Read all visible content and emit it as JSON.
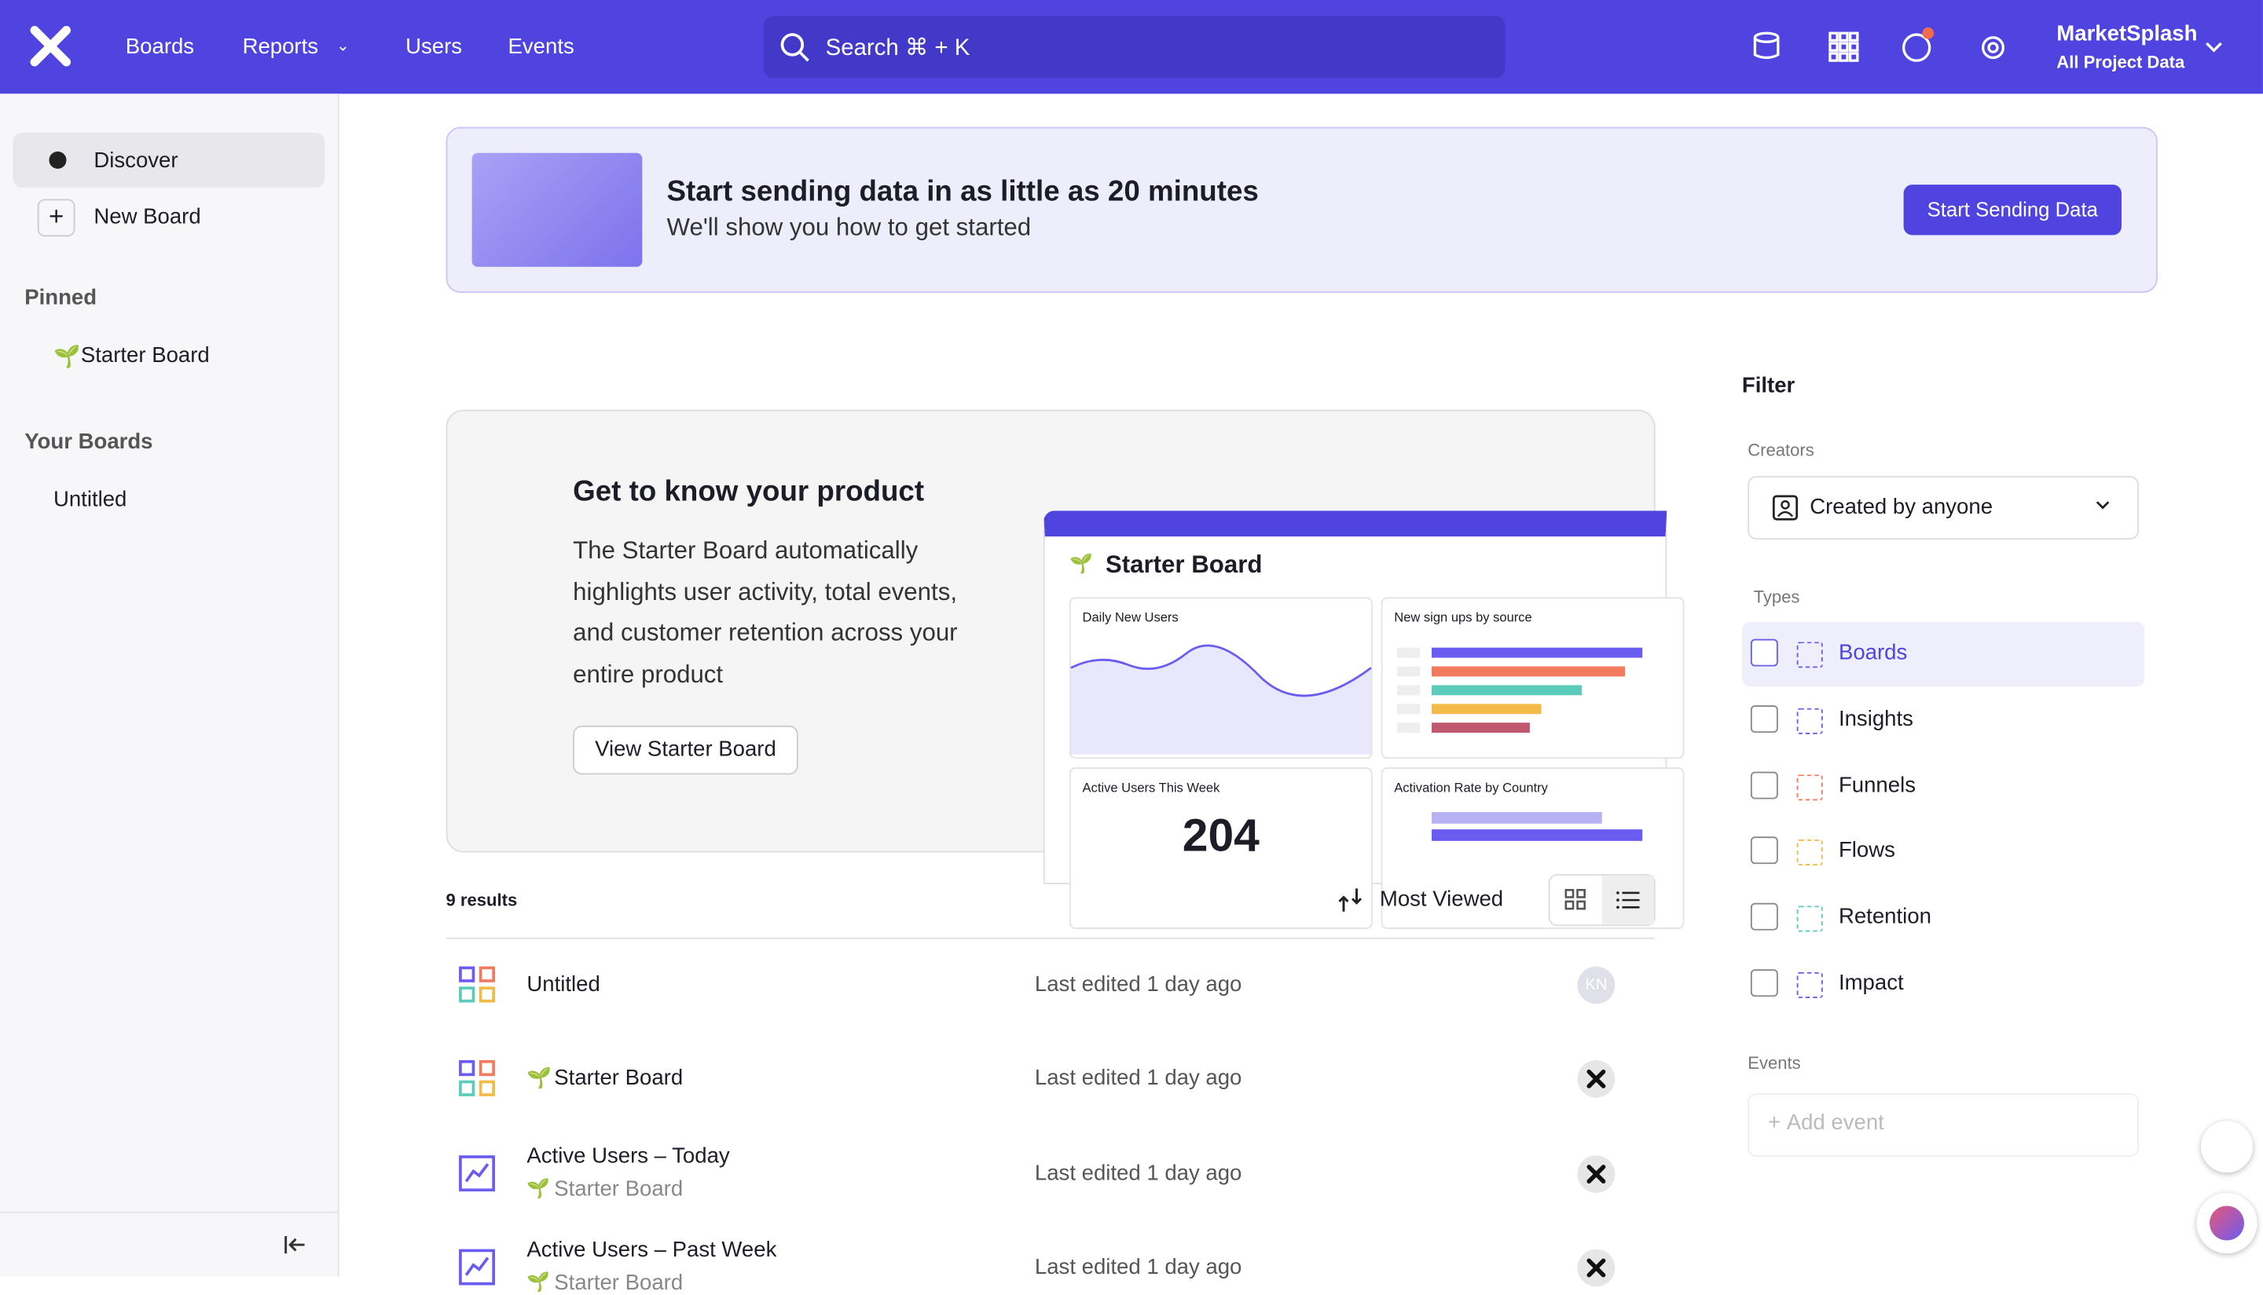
{
  "nav": {
    "links": [
      "Boards",
      "Reports",
      "Users",
      "Events"
    ],
    "search": "Search ⌘ + K",
    "account": {
      "name": "MarketSplash",
      "project": "All Project Data"
    }
  },
  "sidebar": {
    "discover": "Discover",
    "new_board": "New Board",
    "pinned_heading": "Pinned",
    "pinned": [
      "Starter Board"
    ],
    "your_boards_heading": "Your Boards",
    "boards": [
      "Untitled"
    ]
  },
  "banner": {
    "title": "Start sending data in as little as 20 minutes",
    "subtitle": "We'll show you how to get started",
    "button": "Start Sending Data"
  },
  "promo": {
    "title": "Get to know your product",
    "body": "The Starter Board automatically highlights user activity, total events, and customer retention across your entire product",
    "button": "View Starter Board",
    "preview": {
      "title": "Starter Board",
      "cards": [
        "Daily New Users",
        "New sign ups by source",
        "Active Users This Week",
        "Activation Rate by Country"
      ],
      "active_users": "204"
    }
  },
  "results": {
    "count": "9 results",
    "sort": "Most Viewed",
    "rows": [
      {
        "name": "Untitled",
        "edited": "Last edited 1 day ago",
        "owner": "KN"
      },
      {
        "name": "Starter Board",
        "edited": "Last edited 1 day ago"
      },
      {
        "name": "Active Users – Today",
        "board": "Starter Board",
        "edited": "Last edited 1 day ago"
      },
      {
        "name": "Active Users – Past Week",
        "board": "Starter Board",
        "edited": "Last edited 1 day ago"
      }
    ]
  },
  "filter": {
    "heading": "Filter",
    "creators_label": "Creators",
    "creators": "Created by anyone",
    "types_label": "Types",
    "types": [
      "Boards",
      "Insights",
      "Funnels",
      "Flows",
      "Retention",
      "Impact"
    ],
    "events_label": "Events",
    "add_event": "Add event"
  }
}
